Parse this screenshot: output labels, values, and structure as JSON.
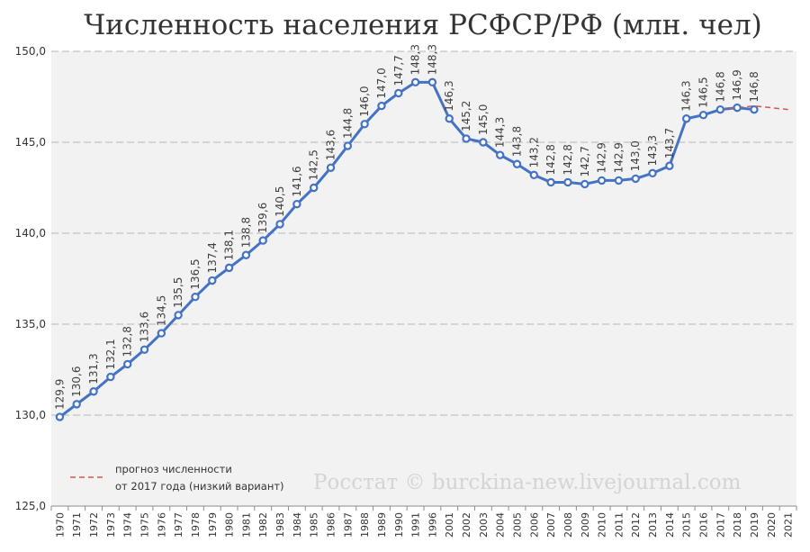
{
  "chart_data": {
    "type": "line",
    "title": "Численность населения РСФСР/РФ (млн. чел)",
    "ylim": [
      125,
      150
    ],
    "yticks": [
      "125,0",
      "130,0",
      "135,0",
      "140,0",
      "145,0",
      "150,0"
    ],
    "ytick_values": [
      125,
      130,
      135,
      140,
      145,
      150
    ],
    "grid": true,
    "legend_position": "bottom-left",
    "categories": [
      "1970",
      "1971",
      "1972",
      "1973",
      "1974",
      "1975",
      "1976",
      "1977",
      "1978",
      "1979",
      "1980",
      "1981",
      "1982",
      "1983",
      "1984",
      "1985",
      "1986",
      "1987",
      "1988",
      "1989",
      "1990",
      "1991",
      "1996",
      "2001",
      "2002",
      "2003",
      "2004",
      "2005",
      "2006",
      "2007",
      "2008",
      "2009",
      "2010",
      "2011",
      "2012",
      "2013",
      "2014",
      "2015",
      "2016",
      "2017",
      "2018",
      "2019",
      "2020",
      "2021"
    ],
    "series": [
      {
        "color": "#4472c4",
        "values": [
          129.9,
          130.6,
          131.3,
          132.1,
          132.8,
          133.6,
          134.5,
          135.5,
          136.5,
          137.4,
          138.1,
          138.8,
          139.6,
          140.5,
          141.6,
          142.5,
          143.6,
          144.8,
          146.0,
          147.0,
          147.7,
          148.3,
          148.3,
          146.3,
          145.2,
          145.0,
          144.3,
          143.8,
          143.2,
          142.8,
          142.8,
          142.7,
          142.9,
          142.9,
          143.0,
          143.3,
          143.7,
          146.3,
          146.5,
          146.8,
          146.9,
          146.8,
          null,
          null
        ],
        "labels": [
          "129,9",
          "130,6",
          "131,3",
          "132,1",
          "132,8",
          "133,6",
          "134,5",
          "135,5",
          "136,5",
          "137,4",
          "138,1",
          "138,8",
          "139,6",
          "140,5",
          "141,6",
          "142,5",
          "143,6",
          "144,8",
          "146,0",
          "147,0",
          "147,7",
          "148,3",
          "148,3",
          "146,3",
          "145,2",
          "145,0",
          "144,3",
          "143,8",
          "143,2",
          "142,8",
          "142,8",
          "142,7",
          "142,9",
          "142,9",
          "143,0",
          "143,3",
          "143,7",
          "146,3",
          "146,5",
          "146,8",
          "146,9",
          "146,8",
          "",
          ""
        ]
      },
      {
        "name": "прогноз численности от 2017 года (низкий вариант)",
        "name_lines": [
          "прогноз численности",
          "от 2017 года (низкий вариант)"
        ],
        "color": "#d9534f",
        "dashed": true,
        "x": [
          "2017",
          "2018",
          "2019",
          "2020",
          "2021"
        ],
        "values": [
          146.8,
          146.9,
          147.0,
          146.9,
          146.8
        ]
      }
    ],
    "watermark": "Росстат © burckina-new.livejournal.com"
  }
}
